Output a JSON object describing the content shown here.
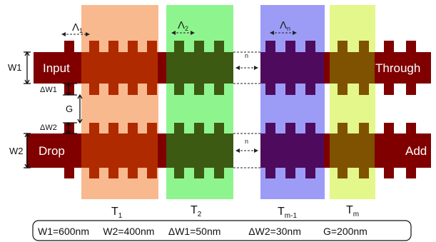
{
  "waveguides": {
    "upper_left": "Input",
    "upper_right": "Through",
    "lower_left": "Drop",
    "lower_right": "Add"
  },
  "dimension_labels": {
    "w1": "W1",
    "w2": "W2",
    "dw1": "ΔW1",
    "dw2": "ΔW2",
    "gap": "G"
  },
  "periods": {
    "p1": "Λ",
    "p1_sub": "1",
    "p2": "Λ",
    "p2_sub": "2",
    "pn": "Λ",
    "pn_sub": "n"
  },
  "ellipsis_label": "n",
  "sections": [
    {
      "name": "T",
      "sub": "1",
      "color": "#f9b98f"
    },
    {
      "name": "T",
      "sub": "2",
      "color": "#8ef58e"
    },
    {
      "name": "T",
      "sub": "m-1",
      "color": "#9c9cf7"
    },
    {
      "name": "T",
      "sub": "m",
      "color": "#e3f78b"
    }
  ],
  "waveguide_colors": {
    "base": "#800000",
    "t1": "#b02a00",
    "t2": "#3c5a12",
    "tm1": "#4e0b5e",
    "tm": "#7e5200"
  },
  "parameters": "W1=600nm     W2=400nm     ΔW1=50nm          ΔW2=30nm        G=200nm"
}
